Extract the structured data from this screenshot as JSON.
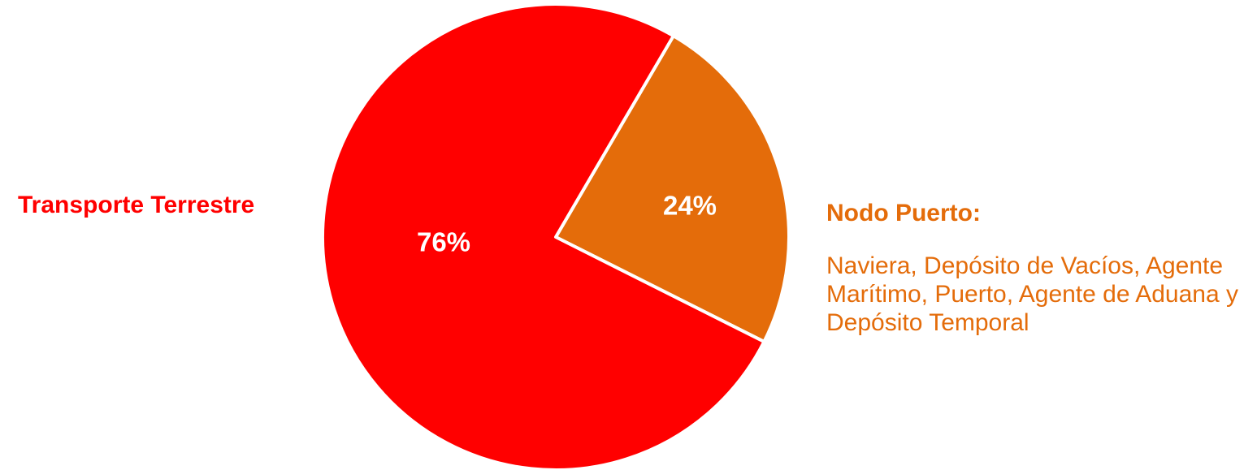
{
  "chart_data": {
    "type": "pie",
    "slices": [
      {
        "label": "Transporte Terrestre",
        "value": 76,
        "value_label": "76%",
        "color": "#ff0000"
      },
      {
        "label": "Nodo Puerto:",
        "value": 24,
        "value_label": "24%",
        "color": "#e46c0a"
      }
    ],
    "legend_placement": "side labels (left and right of pie)"
  },
  "labels": {
    "left": "Transporte Terrestre",
    "right_title": "Nodo Puerto:",
    "right_body": "Naviera, Depósito de Vacíos, Agente Marítimo, Puerto, Agente de Aduana y Depósito Temporal"
  },
  "colors": {
    "transporte": "#ff0000",
    "nodo": "#e46c0a",
    "separator": "#ffffff",
    "label_text": "#ffffff"
  }
}
